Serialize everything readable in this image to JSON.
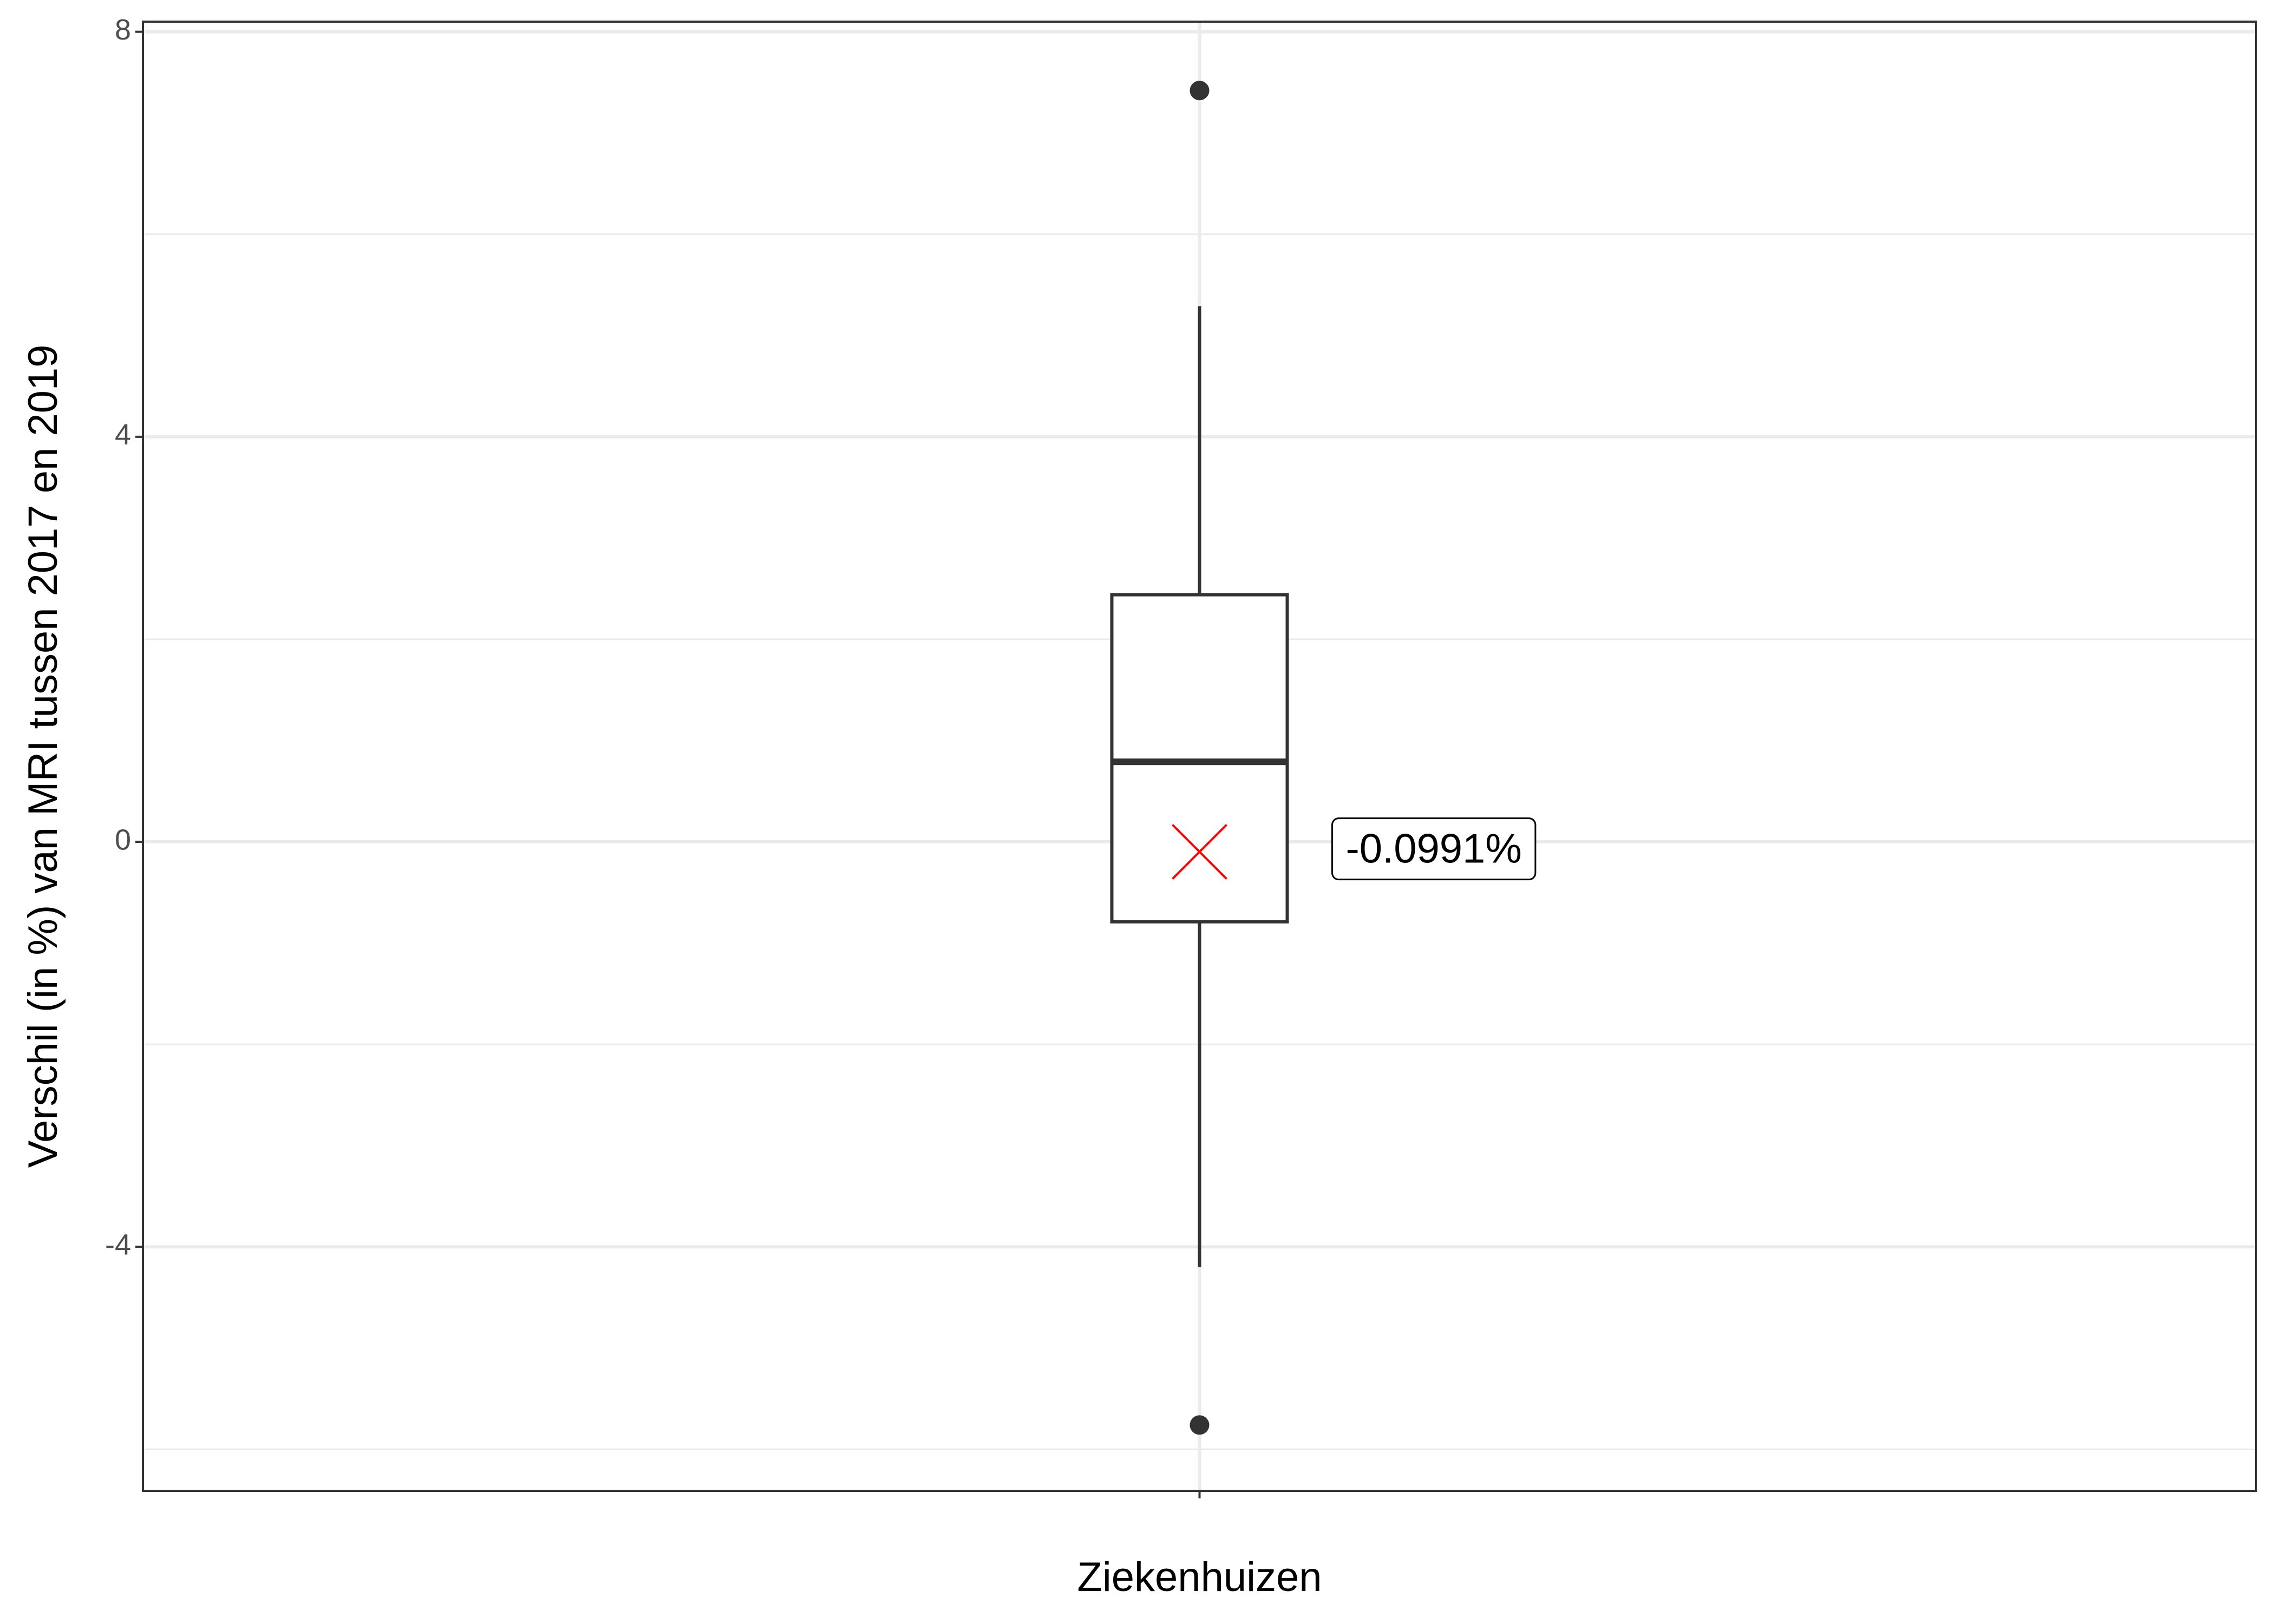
{
  "chart_data": {
    "type": "box",
    "y_label": "Verschil (in %) van MRI tussen 2017 en 2019",
    "categories": [
      "Ziekenhuizen"
    ],
    "boxes": [
      {
        "whislo": -4.2,
        "q1": -0.79,
        "med": 0.79,
        "q3": 2.44,
        "whishi": 5.29,
        "fliers": [
          7.42,
          -5.76
        ],
        "mean": -0.0991,
        "mean_label": "-0.0991%"
      }
    ],
    "ylim": [
      -6.41,
      8.1
    ],
    "yticks": [
      -4,
      0,
      4,
      8
    ],
    "minor_grid": [
      -6,
      -2,
      2,
      6
    ],
    "grid": true,
    "color": "#333333",
    "mean_color": "#ff0000"
  }
}
